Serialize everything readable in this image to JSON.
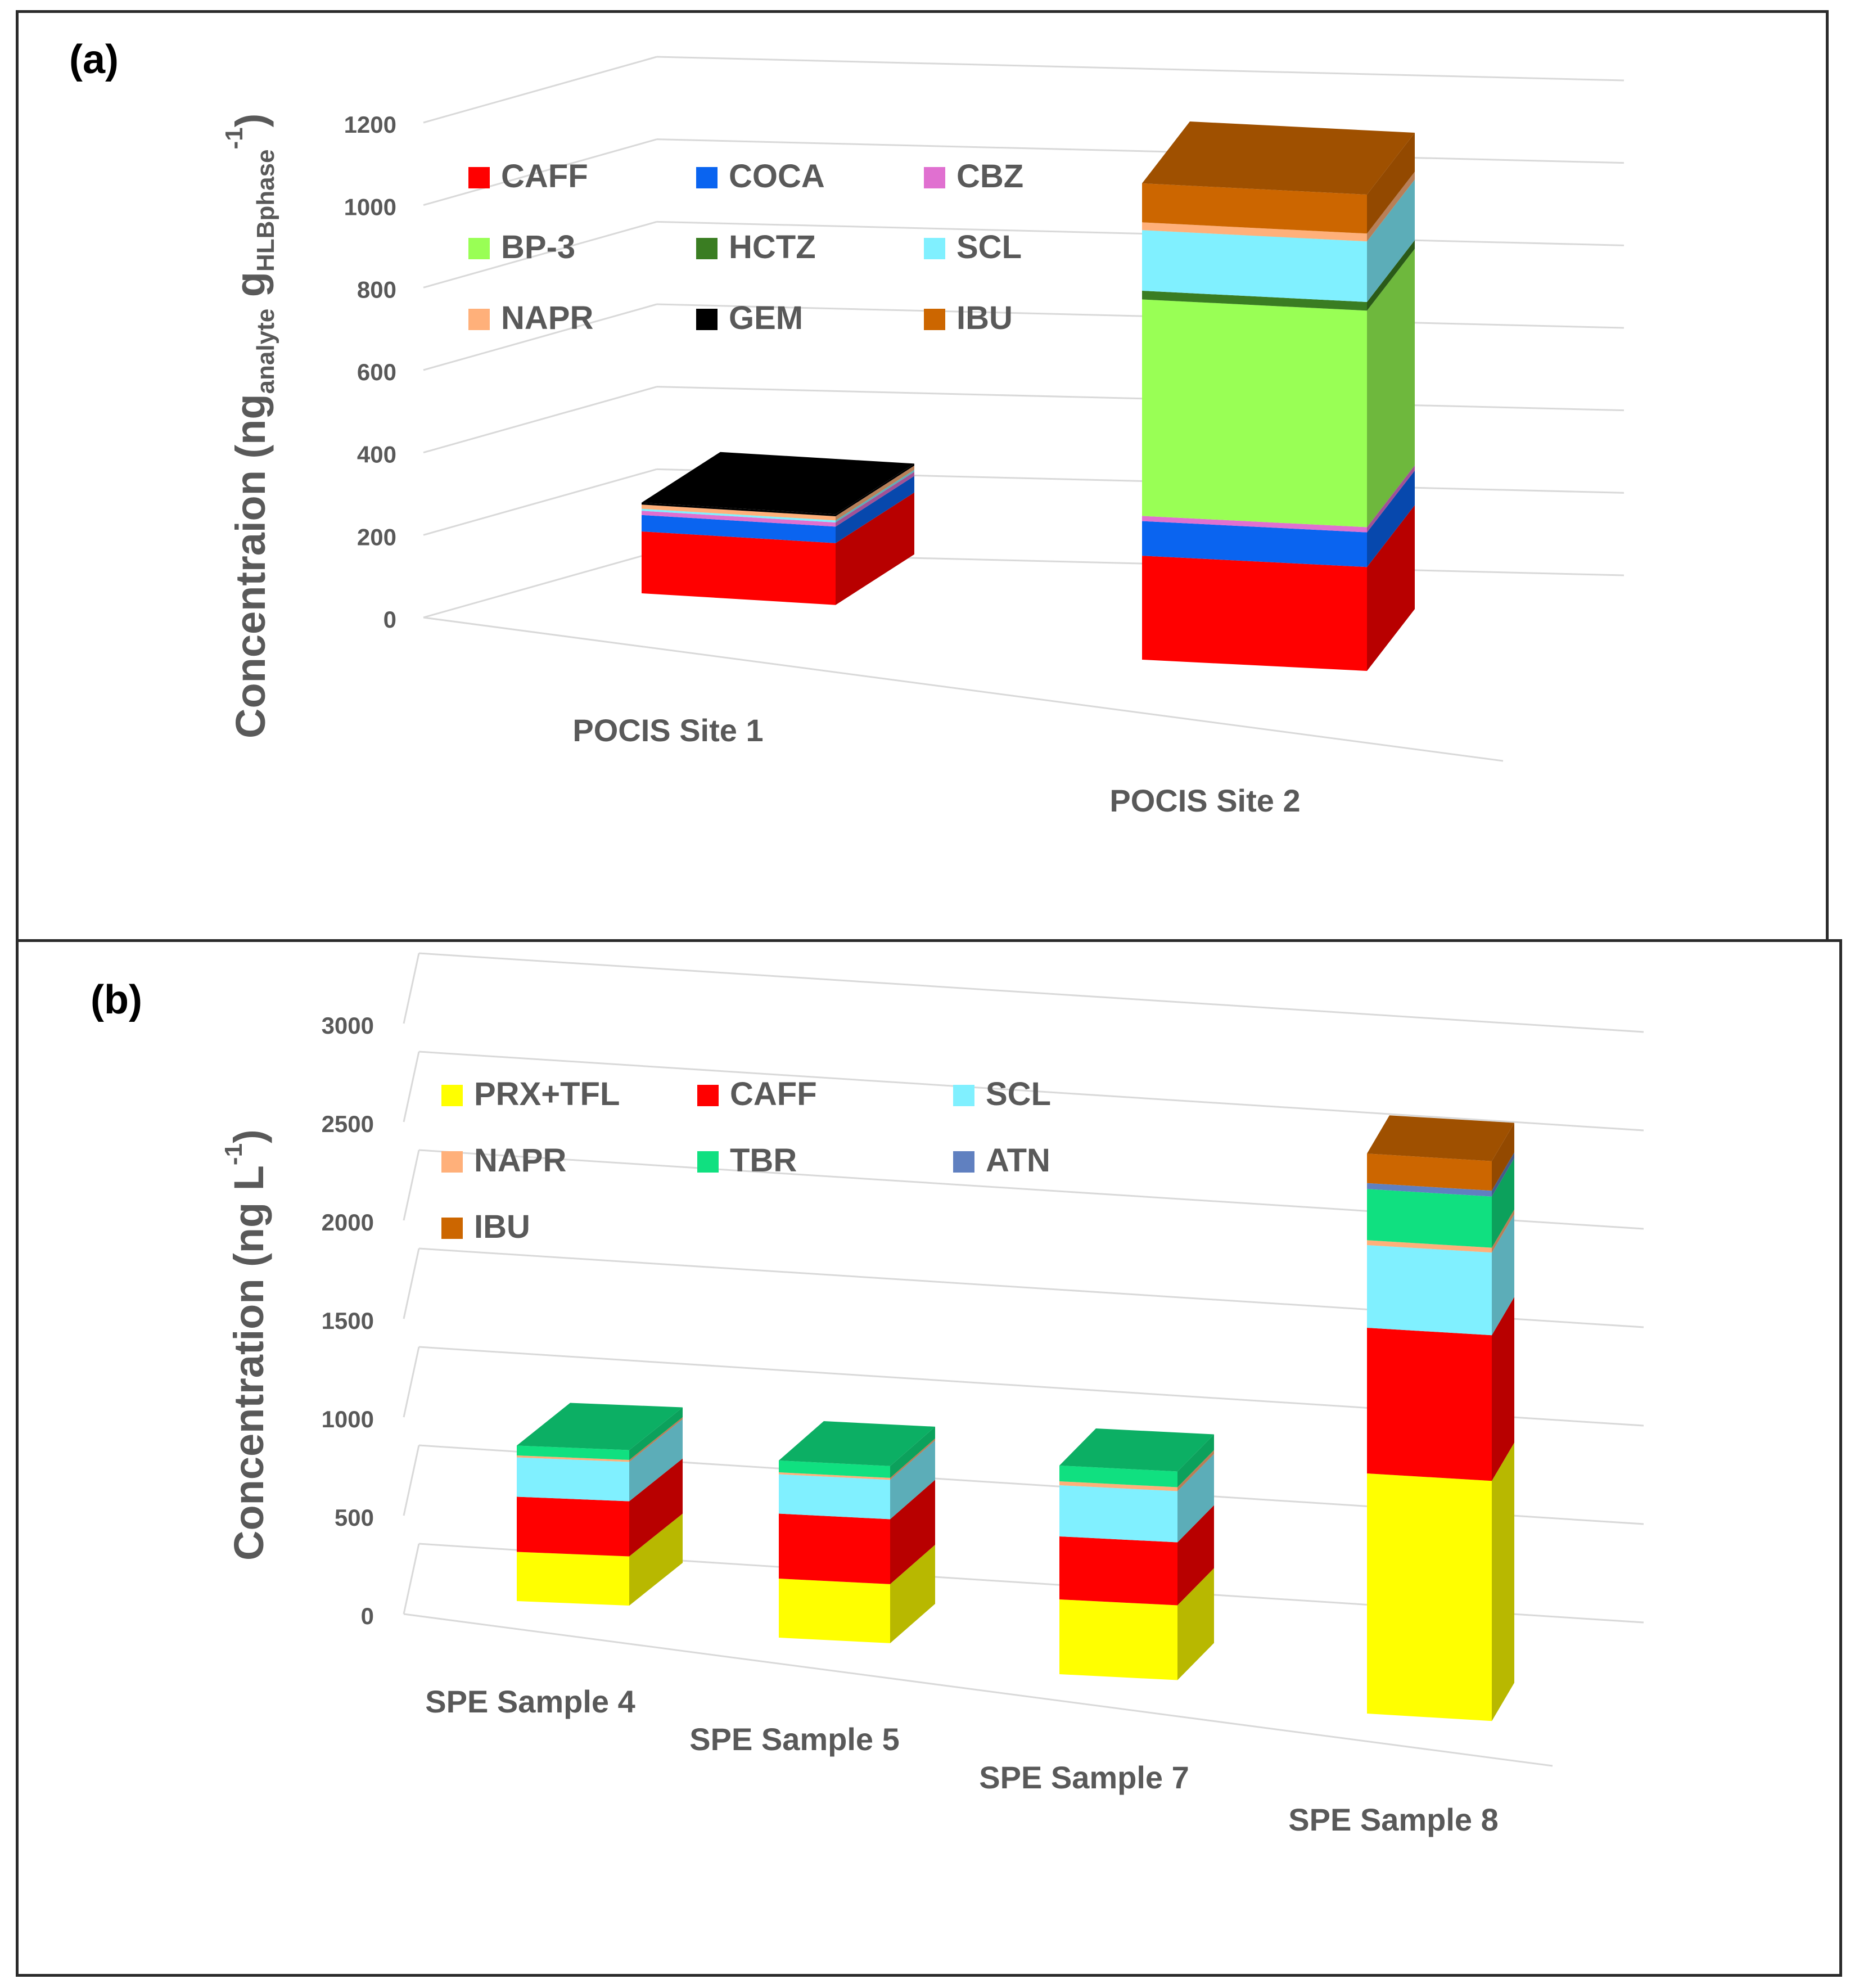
{
  "figure": {
    "panel_a_label": "(a)",
    "panel_b_label": "(b)"
  },
  "chart_data": [
    {
      "type": "bar",
      "stacked": true,
      "style": "3d",
      "panel": "(a)",
      "ylabel": "Concentraion (ng",
      "ylabel_sub": "analyte",
      "ylabel_mid": " g",
      "ylabel_sub2": "HLBphase",
      "ylabel_sup": "-1",
      "ylabel_end": ")",
      "ylim": [
        0,
        1200
      ],
      "yticks": [
        0,
        200,
        400,
        600,
        800,
        1000,
        1200
      ],
      "categories": [
        "POCIS Site 1",
        "POCIS Site 2"
      ],
      "series": [
        {
          "name": "CAFF",
          "color": "#ff0000",
          "values": [
            150,
            240
          ]
        },
        {
          "name": "COCA",
          "color": "#0a64f0",
          "values": [
            40,
            80
          ]
        },
        {
          "name": "CBZ",
          "color": "#e070d0",
          "values": [
            10,
            12
          ]
        },
        {
          "name": "BP-3",
          "color": "#99ff55",
          "values": [
            0,
            500
          ]
        },
        {
          "name": "HCTZ",
          "color": "#3a7d22",
          "values": [
            0,
            20
          ]
        },
        {
          "name": "SCL",
          "color": "#80f0ff",
          "values": [
            5,
            140
          ]
        },
        {
          "name": "NAPR",
          "color": "#ffb07a",
          "values": [
            10,
            18
          ]
        },
        {
          "name": "GEM",
          "color": "#000000",
          "values": [
            5,
            0
          ]
        },
        {
          "name": "IBU",
          "color": "#cc6600",
          "values": [
            0,
            90
          ]
        }
      ]
    },
    {
      "type": "bar",
      "stacked": true,
      "style": "3d",
      "panel": "(b)",
      "ylabel": "Concentration (ng L",
      "ylabel_sup": "-1",
      "ylabel_end": ")",
      "ylim": [
        0,
        3000
      ],
      "yticks": [
        0,
        500,
        1000,
        1500,
        2000,
        2500,
        3000
      ],
      "categories": [
        "SPE Sample 4",
        "SPE Sample 5",
        "SPE Sample 7",
        "SPE Sample 8"
      ],
      "series": [
        {
          "name": "PRX+TFL",
          "color": "#ffff00",
          "values": [
            250,
            300,
            380,
            1220
          ]
        },
        {
          "name": "CAFF",
          "color": "#ff0000",
          "values": [
            280,
            330,
            320,
            740
          ]
        },
        {
          "name": "SCL",
          "color": "#80f0ff",
          "values": [
            200,
            200,
            260,
            420
          ]
        },
        {
          "name": "NAPR",
          "color": "#ffb07a",
          "values": [
            10,
            10,
            20,
            25
          ]
        },
        {
          "name": "TBR",
          "color": "#10e080",
          "values": [
            50,
            60,
            80,
            260
          ]
        },
        {
          "name": "ATN",
          "color": "#6080c0",
          "values": [
            0,
            0,
            0,
            30
          ]
        },
        {
          "name": "IBU",
          "color": "#cc6600",
          "values": [
            0,
            0,
            0,
            150
          ]
        }
      ]
    }
  ]
}
